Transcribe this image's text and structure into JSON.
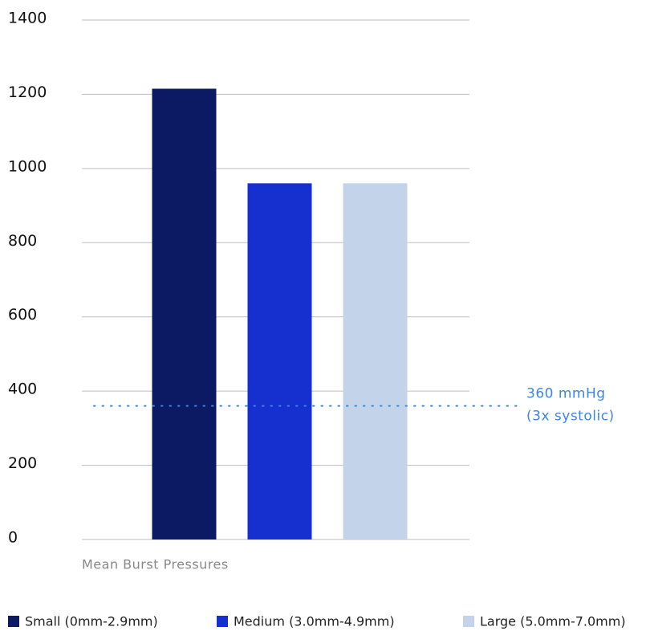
{
  "chart_data": {
    "type": "bar",
    "categories": [
      "Mean Burst Pressures"
    ],
    "series": [
      {
        "name": "Small (0mm-2.9mm)",
        "color": "#0c1a63",
        "values": [
          1215
        ]
      },
      {
        "name": "Medium (3.0mm-4.9mm)",
        "color": "#1530cf",
        "values": [
          960
        ]
      },
      {
        "name": "Large (5.0mm-7.0mm)",
        "color": "#c3d3ea",
        "values": [
          960
        ]
      }
    ],
    "ylim": [
      0,
      1400
    ],
    "yticks": [
      0,
      200,
      400,
      600,
      800,
      1000,
      1200,
      1400
    ],
    "grid": true,
    "legend": "bottom",
    "reference_line": {
      "value": 360,
      "color": "#3b86e6",
      "label": [
        "360 mmHg",
        "(3x systolic)"
      ]
    }
  }
}
